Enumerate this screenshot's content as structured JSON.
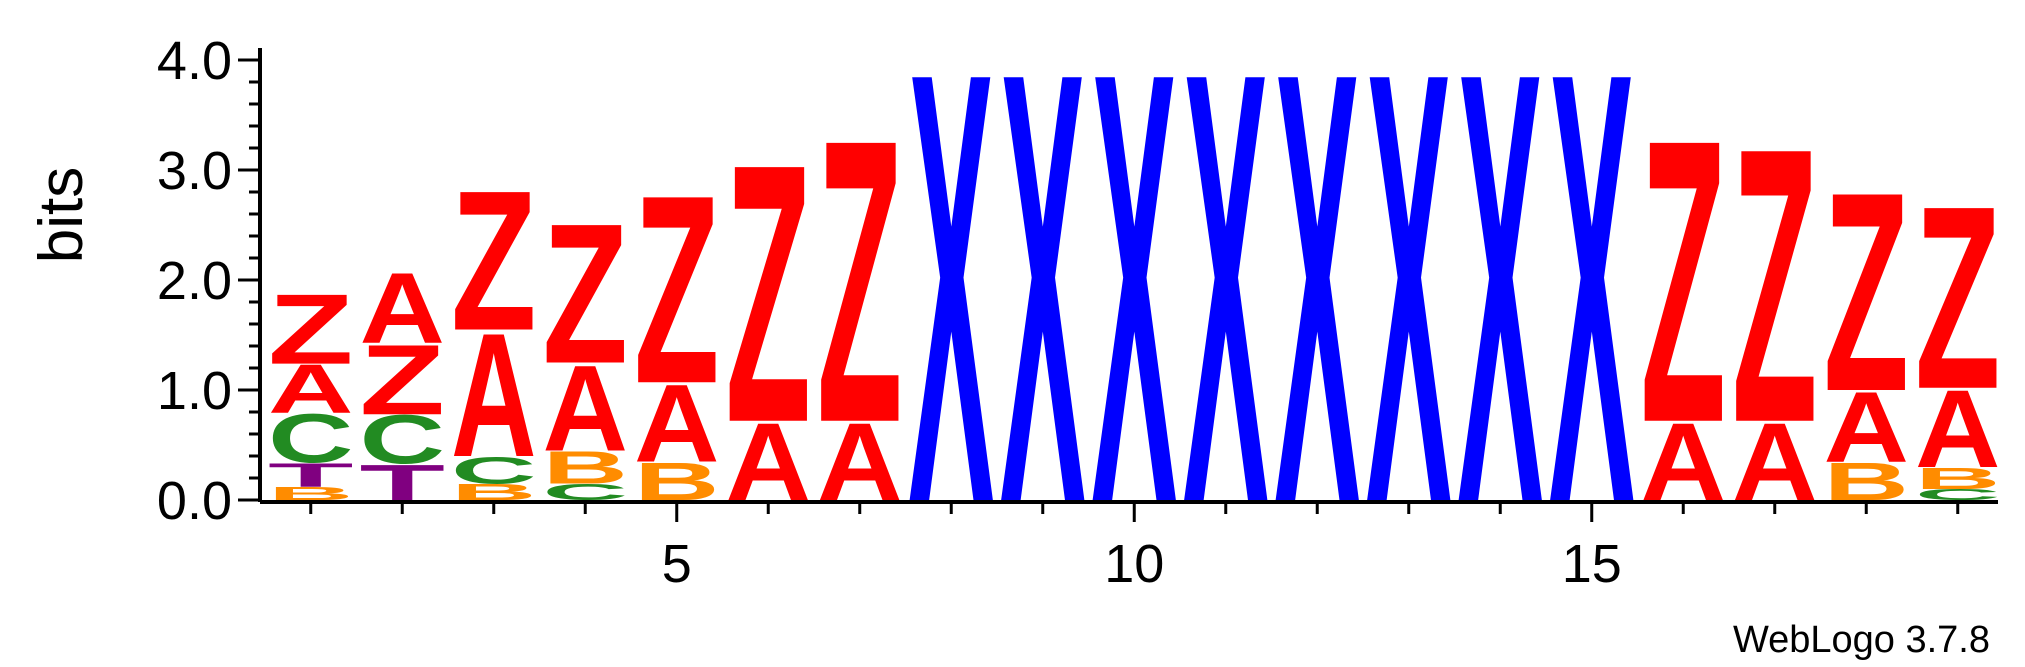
{
  "chart_data": {
    "type": "sequence-logo",
    "ylabel": "bits",
    "ylim": [
      0,
      4.0
    ],
    "yticks": [
      "0.0",
      "1.0",
      "2.0",
      "3.0",
      "4.0"
    ],
    "xticks": [
      "5",
      "10",
      "15"
    ],
    "xtick_positions": [
      5,
      10,
      15
    ],
    "credit": "WebLogo 3.7.8",
    "colors": {
      "Z": "#ff0000",
      "A": "#ff0000",
      "X": "#0000ff",
      "C": "#228b22",
      "B": "#ff8c00",
      "T": "#800080"
    },
    "positions": [
      {
        "pos": 1,
        "stack": [
          {
            "letter": "B",
            "height": 0.12
          },
          {
            "letter": "T",
            "height": 0.22
          },
          {
            "letter": "C",
            "height": 0.45
          },
          {
            "letter": "A",
            "height": 0.45
          },
          {
            "letter": "Z",
            "height": 0.65
          }
        ]
      },
      {
        "pos": 2,
        "stack": [
          {
            "letter": "T",
            "height": 0.33
          },
          {
            "letter": "C",
            "height": 0.45
          },
          {
            "letter": "Z",
            "height": 0.65
          },
          {
            "letter": "A",
            "height": 0.65
          }
        ]
      },
      {
        "pos": 3,
        "stack": [
          {
            "letter": "B",
            "height": 0.15
          },
          {
            "letter": "C",
            "height": 0.25
          },
          {
            "letter": "A",
            "height": 1.15
          },
          {
            "letter": "Z",
            "height": 1.3
          }
        ]
      },
      {
        "pos": 4,
        "stack": [
          {
            "letter": "C",
            "height": 0.15
          },
          {
            "letter": "B",
            "height": 0.3
          },
          {
            "letter": "A",
            "height": 0.8
          },
          {
            "letter": "Z",
            "height": 1.3
          }
        ]
      },
      {
        "pos": 5,
        "stack": [
          {
            "letter": "B",
            "height": 0.35
          },
          {
            "letter": "A",
            "height": 0.72
          },
          {
            "letter": "Z",
            "height": 1.75
          }
        ]
      },
      {
        "pos": 6,
        "stack": [
          {
            "letter": "A",
            "height": 0.72
          },
          {
            "letter": "Z",
            "height": 2.4
          }
        ]
      },
      {
        "pos": 7,
        "stack": [
          {
            "letter": "A",
            "height": 0.72
          },
          {
            "letter": "Z",
            "height": 2.63
          }
        ]
      },
      {
        "pos": 8,
        "stack": [
          {
            "letter": "X",
            "height": 4.0
          }
        ]
      },
      {
        "pos": 9,
        "stack": [
          {
            "letter": "X",
            "height": 4.0
          }
        ]
      },
      {
        "pos": 10,
        "stack": [
          {
            "letter": "X",
            "height": 4.0
          }
        ]
      },
      {
        "pos": 11,
        "stack": [
          {
            "letter": "X",
            "height": 4.0
          }
        ]
      },
      {
        "pos": 12,
        "stack": [
          {
            "letter": "X",
            "height": 4.0
          }
        ]
      },
      {
        "pos": 13,
        "stack": [
          {
            "letter": "X",
            "height": 4.0
          }
        ]
      },
      {
        "pos": 14,
        "stack": [
          {
            "letter": "X",
            "height": 4.0
          }
        ]
      },
      {
        "pos": 15,
        "stack": [
          {
            "letter": "X",
            "height": 4.0
          }
        ]
      },
      {
        "pos": 16,
        "stack": [
          {
            "letter": "A",
            "height": 0.72
          },
          {
            "letter": "Z",
            "height": 2.63
          }
        ]
      },
      {
        "pos": 17,
        "stack": [
          {
            "letter": "A",
            "height": 0.72
          },
          {
            "letter": "Z",
            "height": 2.55
          }
        ]
      },
      {
        "pos": 18,
        "stack": [
          {
            "letter": "B",
            "height": 0.35
          },
          {
            "letter": "A",
            "height": 0.65
          },
          {
            "letter": "Z",
            "height": 1.85
          }
        ]
      },
      {
        "pos": 19,
        "stack": [
          {
            "letter": "C",
            "height": 0.1
          },
          {
            "letter": "B",
            "height": 0.2
          },
          {
            "letter": "A",
            "height": 0.72
          },
          {
            "letter": "Z",
            "height": 1.7
          }
        ]
      }
    ]
  }
}
